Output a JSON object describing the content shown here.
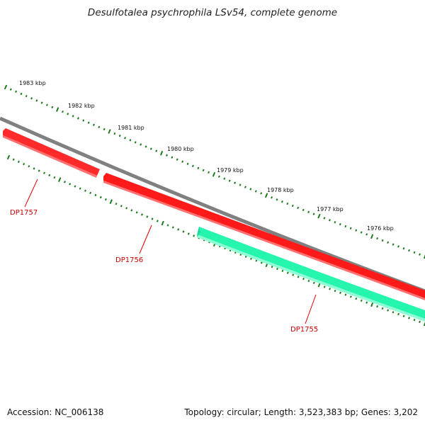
{
  "title": "Desulfotalea psychrophila LSv54, complete genome",
  "accession": "Accession: NC_006138",
  "summary": "Topology: circular; Length: 3,523,383 bp; Genes: 3,202",
  "colors": {
    "backbone": "#808080",
    "gene_forward": "#ff0000",
    "gene_reverse": "#22f0a8",
    "ticks": "#1e7a1e",
    "label": "#cc0000"
  },
  "scale": {
    "labels": [
      "1983 kbp",
      "1982 kbp",
      "1981 kbp",
      "1980 kbp",
      "1979 kbp",
      "1978 kbp",
      "1977 kbp",
      "1976 kbp"
    ]
  },
  "genes": [
    {
      "name": "DP1757",
      "strand": "forward"
    },
    {
      "name": "DP1756",
      "strand": "forward"
    },
    {
      "name": "DP1755",
      "strand": "reverse"
    }
  ]
}
